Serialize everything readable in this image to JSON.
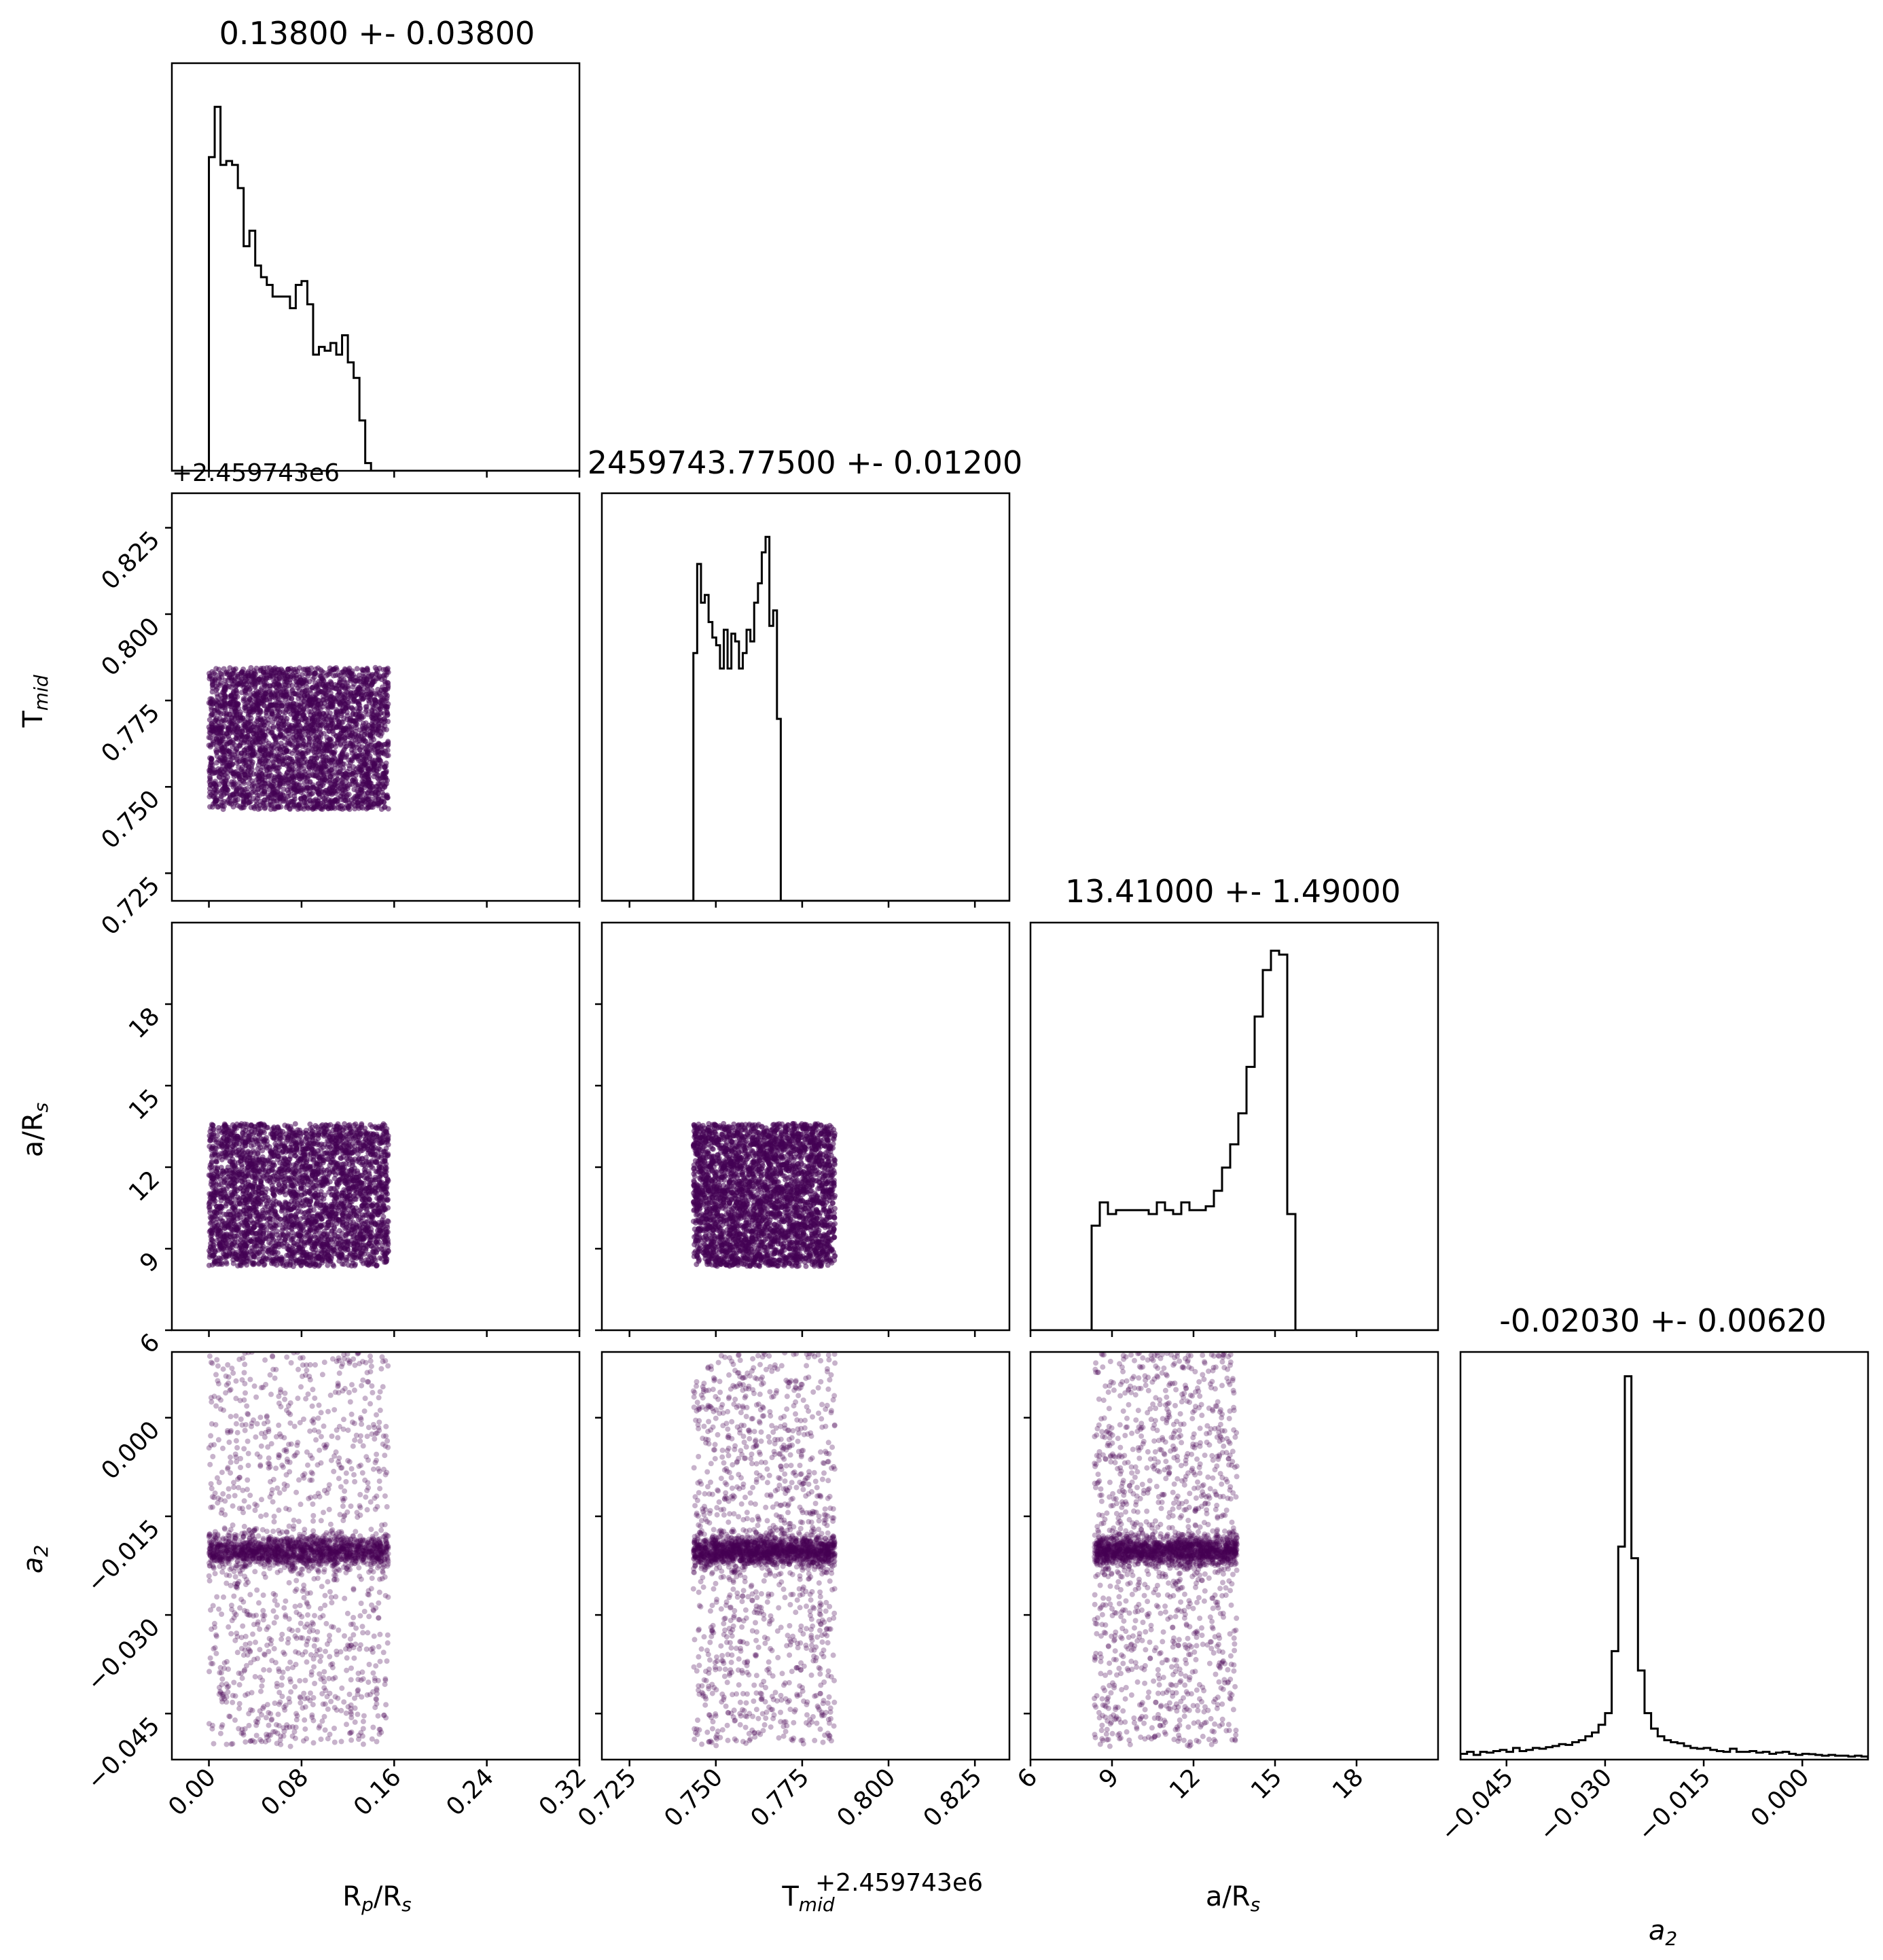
{
  "chart_data": {
    "type": "corner",
    "parameters": [
      {
        "key": "rp",
        "label": "Rp/Rs",
        "label_main": "R",
        "label_sub1": "p",
        "label_mid": "/R",
        "label_sub2": "s",
        "title": "0.13800 +- 0.03800",
        "range": [
          -0.032,
          0.32
        ],
        "ticks": [
          0.0,
          0.08,
          0.16,
          0.24,
          0.32
        ],
        "tick_labels": [
          "0.00",
          "0.08",
          "0.16",
          "0.24",
          "0.32"
        ],
        "offset": "",
        "sample_range": [
          0.0,
          0.155
        ]
      },
      {
        "key": "tmid",
        "label": "Tmid",
        "label_main": "T",
        "label_sub1": "mid",
        "label_mid": "",
        "label_sub2": "",
        "title": "2459743.77500 +- 0.01200",
        "range": [
          0.717,
          0.835
        ],
        "ticks": [
          0.725,
          0.75,
          0.775,
          0.8,
          0.825
        ],
        "tick_labels": [
          "0.725",
          "0.750",
          "0.775",
          "0.800",
          "0.825"
        ],
        "offset": "+2.459743e6",
        "sample_range": [
          0.7435,
          0.7845
        ]
      },
      {
        "key": "ars",
        "label": "a/Rs",
        "label_main": "a/R",
        "label_sub1": "s",
        "label_mid": "",
        "label_sub2": "",
        "title": "13.41000 +- 1.49000",
        "range": [
          6.0,
          21.0
        ],
        "ticks": [
          6,
          9,
          12,
          15,
          18
        ],
        "tick_labels": [
          "6",
          "9",
          "12",
          "15",
          "18"
        ],
        "offset": "",
        "sample_range": [
          8.35,
          13.6
        ]
      },
      {
        "key": "a2",
        "label": "a2",
        "label_main": "a",
        "label_sub1": "2",
        "label_mid": "",
        "label_sub2": "",
        "title": "-0.02030 +- 0.00620",
        "range": [
          -0.052,
          0.01
        ],
        "ticks": [
          -0.045,
          -0.03,
          -0.015,
          0.0
        ],
        "tick_labels": [
          "−0.045",
          "−0.030",
          "−0.015",
          "0.000"
        ],
        "offset": "",
        "sample_range": [
          -0.05,
          0.01
        ]
      }
    ],
    "histograms": [
      {
        "param": "rp",
        "bin_width": 0.005,
        "start": 0.0,
        "counts": [
          0.81,
          0.94,
          0.79,
          0.8,
          0.79,
          0.73,
          0.58,
          0.62,
          0.53,
          0.5,
          0.48,
          0.45,
          0.45,
          0.45,
          0.42,
          0.48,
          0.49,
          0.43,
          0.3,
          0.32,
          0.31,
          0.33,
          0.3,
          0.35,
          0.28,
          0.24,
          0.13,
          0.02
        ]
      },
      {
        "param": "tmid",
        "bin_width": 0.0011,
        "start": 0.7435,
        "counts": [
          0.64,
          0.87,
          0.77,
          0.79,
          0.72,
          0.68,
          0.66,
          0.6,
          0.7,
          0.6,
          0.69,
          0.67,
          0.6,
          0.64,
          0.7,
          0.67,
          0.77,
          0.82,
          0.9,
          0.94,
          0.71,
          0.75,
          0.47
        ]
      },
      {
        "param": "ars",
        "bin_width": 0.3,
        "start": 8.25,
        "counts": [
          0.27,
          0.33,
          0.3,
          0.31,
          0.31,
          0.31,
          0.31,
          0.3,
          0.33,
          0.31,
          0.3,
          0.33,
          0.31,
          0.31,
          0.32,
          0.36,
          0.42,
          0.48,
          0.56,
          0.68,
          0.81,
          0.93,
          0.98,
          0.97,
          0.3
        ]
      },
      {
        "param": "a2",
        "bin_width": 0.001,
        "start": -0.052,
        "counts": [
          0.015,
          0.02,
          0.012,
          0.02,
          0.018,
          0.022,
          0.025,
          0.02,
          0.03,
          0.022,
          0.025,
          0.03,
          0.028,
          0.032,
          0.035,
          0.04,
          0.038,
          0.045,
          0.05,
          0.06,
          0.07,
          0.09,
          0.12,
          0.28,
          0.55,
          0.99,
          0.52,
          0.23,
          0.12,
          0.08,
          0.06,
          0.05,
          0.045,
          0.042,
          0.035,
          0.03,
          0.028,
          0.03,
          0.025,
          0.022,
          0.02,
          0.028,
          0.02,
          0.02,
          0.022,
          0.018,
          0.02,
          0.015,
          0.018,
          0.02,
          0.015,
          0.012,
          0.015,
          0.014,
          0.012,
          0.01,
          0.012,
          0.01,
          0.01,
          0.008,
          0.01,
          0.008
        ]
      }
    ],
    "scatter_color": "#440154",
    "hist_color": "#000000"
  }
}
